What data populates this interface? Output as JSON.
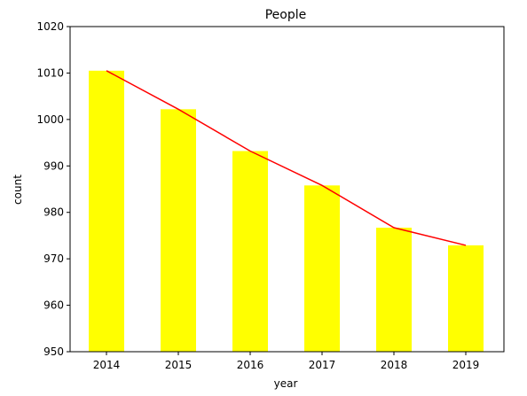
{
  "chart_data": {
    "type": "bar",
    "title": "People",
    "xlabel": "year",
    "ylabel": "count",
    "categories": [
      "2014",
      "2015",
      "2016",
      "2017",
      "2018",
      "2019"
    ],
    "series": [
      {
        "kind": "bar",
        "values": [
          1010.5,
          1002.2,
          993.2,
          985.8,
          976.7,
          972.9
        ],
        "color": "#ffff00"
      },
      {
        "kind": "line",
        "values": [
          1010.5,
          1002.2,
          993.2,
          985.8,
          976.7,
          972.9
        ],
        "color": "#ff0000"
      }
    ],
    "ylim": [
      950,
      1020
    ],
    "yticks": [
      950,
      960,
      970,
      980,
      990,
      1000,
      1010,
      1020
    ],
    "grid": false,
    "legend": false
  }
}
